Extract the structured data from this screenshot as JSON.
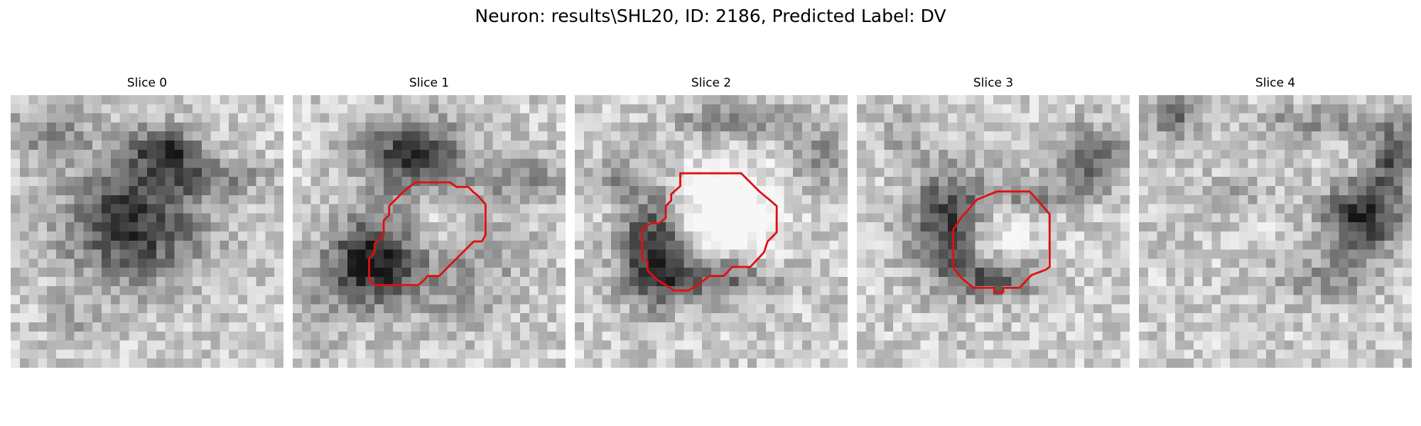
{
  "figure": {
    "suptitle": "Neuron: results\\SHL20, ID: 2186, Predicted Label: DV",
    "contour_color": "#e01010",
    "slices": [
      {
        "title": "Slice 0",
        "has_contour": false
      },
      {
        "title": "Slice 1",
        "has_contour": true
      },
      {
        "title": "Slice 2",
        "has_contour": true
      },
      {
        "title": "Slice 3",
        "has_contour": true
      },
      {
        "title": "Slice 4",
        "has_contour": false
      }
    ]
  }
}
